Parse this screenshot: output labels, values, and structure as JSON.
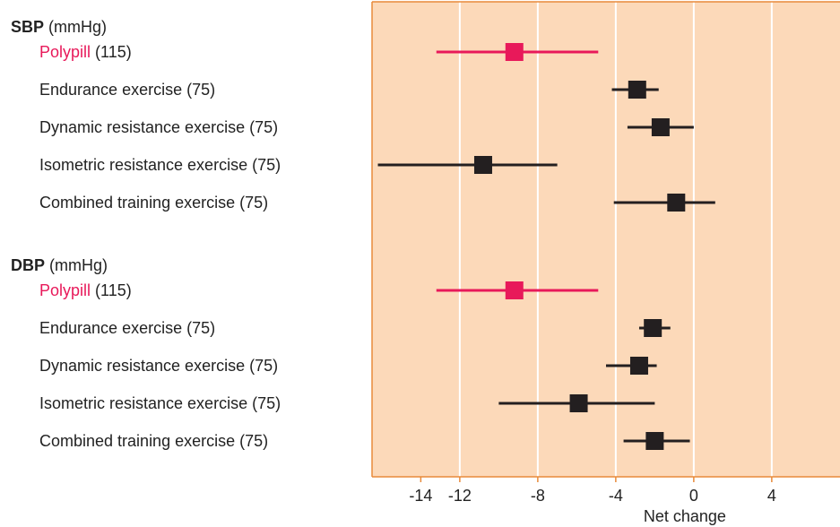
{
  "chart_data": {
    "type": "forest",
    "xlabel": "Net change",
    "xlim": [
      -16.5,
      7.5
    ],
    "xticks": [
      -14,
      -12,
      -8,
      -4,
      0,
      4
    ],
    "gridlines": [
      -12,
      -8,
      -4,
      0,
      4
    ],
    "colors": {
      "background": "#fcd9b9",
      "frame": "#e88a3a",
      "grid": "#ffffff",
      "highlight": "#e8195a",
      "default": "#231f20"
    },
    "groups": [
      {
        "label": "SBP",
        "unit": "(mmHg)",
        "items": [
          {
            "name": "Polypill",
            "n": "(115)",
            "estimate": -9.2,
            "low": -13.2,
            "high": -4.9,
            "highlight": true
          },
          {
            "name": "Endurance exercise",
            "n": "(75)",
            "estimate": -2.9,
            "low": -4.2,
            "high": -1.8,
            "highlight": false
          },
          {
            "name": "Dynamic resistance exercise",
            "n": "(75)",
            "estimate": -1.7,
            "low": -3.4,
            "high": 0.0,
            "highlight": false
          },
          {
            "name": "Isometric resistance exercise",
            "n": "(75)",
            "estimate": -10.8,
            "low": -16.2,
            "high": -7.0,
            "highlight": false
          },
          {
            "name": "Combined training exercise",
            "n": "(75)",
            "estimate": -0.9,
            "low": -4.1,
            "high": 1.1,
            "highlight": false
          }
        ]
      },
      {
        "label": "DBP",
        "unit": "(mmHg)",
        "items": [
          {
            "name": "Polypill",
            "n": "(115)",
            "estimate": -9.2,
            "low": -13.2,
            "high": -4.9,
            "highlight": true
          },
          {
            "name": "Endurance exercise",
            "n": "(75)",
            "estimate": -2.1,
            "low": -2.8,
            "high": -1.2,
            "highlight": false
          },
          {
            "name": "Dynamic resistance exercise",
            "n": "(75)",
            "estimate": -2.8,
            "low": -4.5,
            "high": -1.9,
            "highlight": false
          },
          {
            "name": "Isometric resistance exercise",
            "n": "(75)",
            "estimate": -5.9,
            "low": -10.0,
            "high": -2.0,
            "highlight": false
          },
          {
            "name": "Combined training exercise",
            "n": "(75)",
            "estimate": -2.0,
            "low": -3.6,
            "high": -0.2,
            "highlight": false
          }
        ]
      }
    ]
  }
}
